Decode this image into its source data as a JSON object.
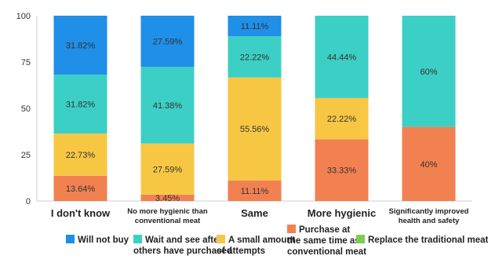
{
  "chart_data": {
    "type": "bar",
    "stacked": true,
    "categories": [
      "I don't know",
      "No more hygienic than conventional meat",
      "Same",
      "More hygienic",
      "Significantly improved health and safety"
    ],
    "series": [
      {
        "name": "Replace the traditional meat",
        "color": "#7ecb4f",
        "values": [
          0,
          0,
          0,
          0,
          0
        ],
        "labels": [
          "",
          "",
          "",
          "",
          ""
        ]
      },
      {
        "name": "Purchase at the same time as conventional meat",
        "color": "#f28152",
        "values": [
          13.64,
          3.45,
          11.11,
          33.33,
          40
        ],
        "labels": [
          "13.64%",
          "3.45%",
          "11.11%",
          "33.33%",
          "40%"
        ]
      },
      {
        "name": "A small amount of attempts",
        "color": "#f7c744",
        "values": [
          22.73,
          27.59,
          55.56,
          22.22,
          0
        ],
        "labels": [
          "22.73%",
          "27.59%",
          "55.56%",
          "22.22%",
          ""
        ]
      },
      {
        "name": "Wait and see after others have purchased",
        "color": "#3ccfc5",
        "values": [
          31.82,
          41.38,
          22.22,
          44.44,
          60
        ],
        "labels": [
          "31.82%",
          "41.38%",
          "22.22%",
          "44.44%",
          "60%"
        ]
      },
      {
        "name": "Will not buy",
        "color": "#1f8fe8",
        "values": [
          31.82,
          27.59,
          11.11,
          0,
          0
        ],
        "labels": [
          "31.82%",
          "27.59%",
          "11.11%",
          "",
          ""
        ]
      }
    ],
    "ylim": [
      0,
      100
    ],
    "yticks": [
      "0",
      "25",
      "50",
      "75",
      "100"
    ],
    "grid": false,
    "legend_position": "bottom",
    "legend": [
      {
        "series": 4,
        "lines": [
          "Will not buy"
        ]
      },
      {
        "series": 3,
        "lines": [
          "Wait and see after",
          "others have purchased"
        ]
      },
      {
        "series": 2,
        "lines": [
          "A small amount",
          "of attempts"
        ]
      },
      {
        "series": 1,
        "lines": [
          "Purchase at",
          "the same time as",
          "conventional meat"
        ]
      },
      {
        "series": 0,
        "lines": [
          "Replace the traditional meat"
        ]
      }
    ]
  }
}
